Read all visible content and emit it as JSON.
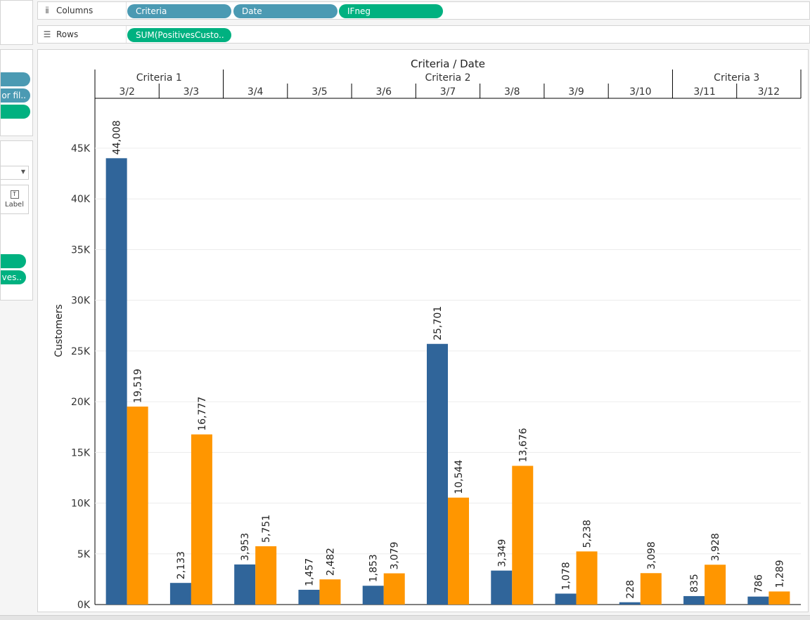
{
  "shelves": {
    "columns": {
      "label": "Columns",
      "pills": [
        {
          "label": "Criteria",
          "color": "#4b9ab3"
        },
        {
          "label": "Date",
          "color": "#4b9ab3"
        },
        {
          "label": "IFneg",
          "color": "#00b180"
        }
      ]
    },
    "rows": {
      "label": "Rows",
      "pills": [
        {
          "label": "SUM(PositivesCusto..",
          "color": "#00b180"
        }
      ]
    }
  },
  "left_panel": {
    "filter_pills": [
      {
        "label": "",
        "color": "#4b9ab3"
      },
      {
        "label": "or fil..",
        "color": "#4b9ab3"
      },
      {
        "label": "",
        "color": "#00b180"
      }
    ],
    "marks_label_button": "Label",
    "marks_pills": [
      {
        "label": "",
        "color": "#00b180"
      },
      {
        "label": "ves..",
        "color": "#00b180"
      }
    ]
  },
  "chart_data": {
    "type": "bar",
    "title": "Criteria / Date",
    "ylabel": "Customers",
    "ylim": [
      0,
      50000
    ],
    "yticks": [
      {
        "value": 0,
        "label": "0K"
      },
      {
        "value": 5000,
        "label": "5K"
      },
      {
        "value": 10000,
        "label": "10K"
      },
      {
        "value": 15000,
        "label": "15K"
      },
      {
        "value": 20000,
        "label": "20K"
      },
      {
        "value": 25000,
        "label": "25K"
      },
      {
        "value": 30000,
        "label": "30K"
      },
      {
        "value": 35000,
        "label": "35K"
      },
      {
        "value": 40000,
        "label": "40K"
      },
      {
        "value": 45000,
        "label": "45K"
      }
    ],
    "groups": [
      {
        "name": "Criteria 1",
        "dates": [
          "3/2",
          "3/3"
        ]
      },
      {
        "name": "Criteria 2",
        "dates": [
          "3/4",
          "3/5",
          "3/6",
          "3/7",
          "3/8",
          "3/9",
          "3/10"
        ]
      },
      {
        "name": "Criteria 3",
        "dates": [
          "3/11",
          "3/12"
        ]
      }
    ],
    "categories": [
      "3/2",
      "3/3",
      "3/4",
      "3/5",
      "3/6",
      "3/7",
      "3/8",
      "3/9",
      "3/10",
      "3/11",
      "3/12"
    ],
    "series": [
      {
        "color": "#30659a",
        "values": [
          44008,
          2133,
          3953,
          1457,
          1853,
          25701,
          3349,
          1078,
          228,
          835,
          786
        ],
        "labels": [
          "44,008",
          "2,133",
          "3,953",
          "1,457",
          "1,853",
          "25,701",
          "3,349",
          "1,078",
          "228",
          "835",
          "786"
        ]
      },
      {
        "color": "#ff9600",
        "values": [
          19519,
          16777,
          5751,
          2482,
          3079,
          10544,
          13676,
          5238,
          3098,
          3928,
          1289
        ],
        "labels": [
          "19,519",
          "16,777",
          "5,751",
          "2,482",
          "3,079",
          "10,544",
          "13,676",
          "5,238",
          "3,098",
          "3,928",
          "1,289"
        ]
      }
    ],
    "grid": true
  }
}
